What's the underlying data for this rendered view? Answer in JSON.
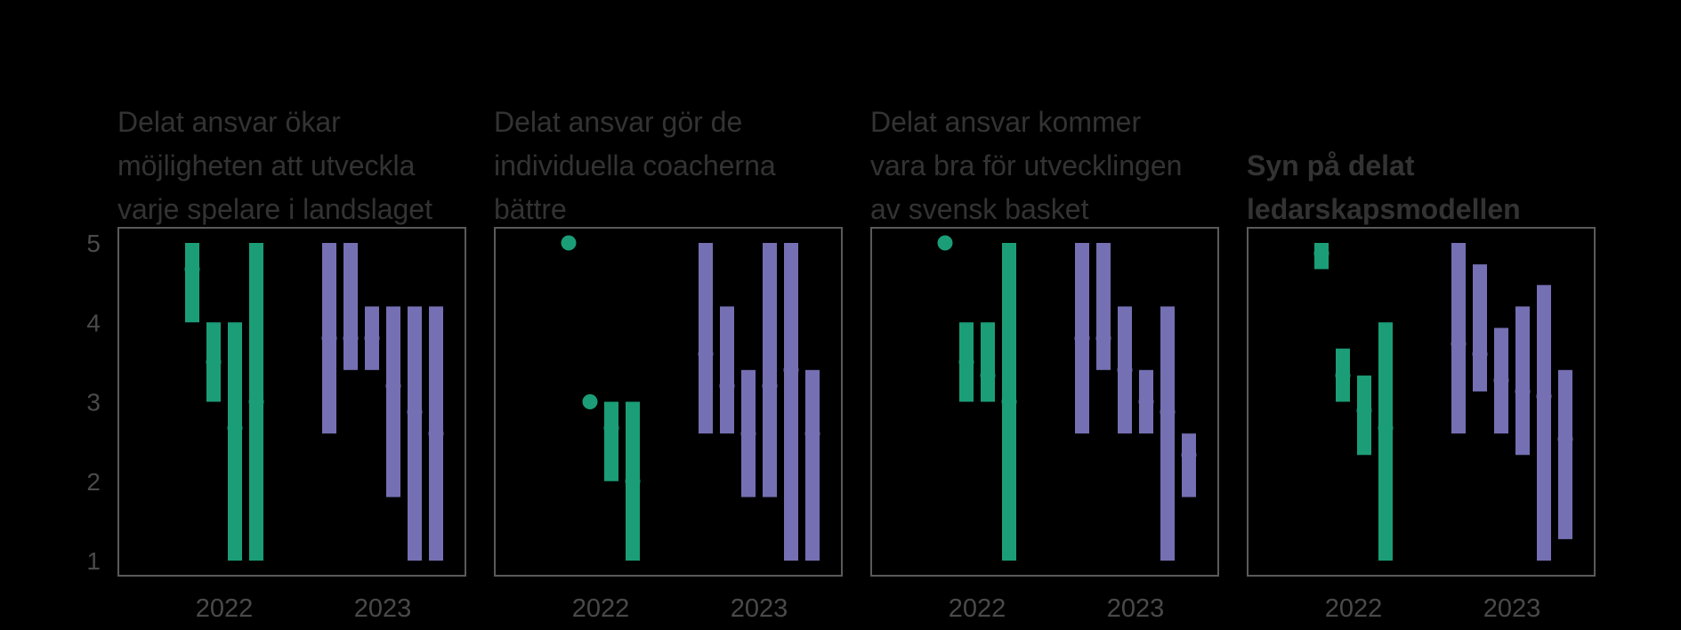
{
  "chart_data": {
    "type": "interval",
    "ylim": [
      1,
      5
    ],
    "yticks": [
      1,
      2,
      3,
      4,
      5
    ],
    "colors": {
      "2022": "#1b9e77",
      "2023": "#7570b3"
    },
    "panels": [
      {
        "title_lines": [
          "Delat ansvar ökar",
          "möjligheten att utveckla",
          "varje spelare i landslaget"
        ],
        "title_bold": false,
        "groups": [
          {
            "year": "2022",
            "items": [
              {
                "low": 4.0,
                "high": 5.0,
                "mean": 4.67
              },
              {
                "low": 3.0,
                "high": 4.0,
                "mean": 3.5
              },
              {
                "low": 1.0,
                "high": 4.0,
                "mean": 2.67
              },
              {
                "low": 1.0,
                "high": 5.0,
                "mean": 3.0
              }
            ]
          },
          {
            "year": "2023",
            "items": [
              {
                "low": 2.6,
                "high": 5.0,
                "mean": 3.8
              },
              {
                "low": 3.4,
                "high": 5.0,
                "mean": 3.8
              },
              {
                "low": 3.4,
                "high": 4.2,
                "mean": 3.8
              },
              {
                "low": 1.8,
                "high": 4.2,
                "mean": 3.2
              },
              {
                "low": 1.0,
                "high": 4.2,
                "mean": 2.87
              },
              {
                "low": 1.0,
                "high": 4.2,
                "mean": 2.6
              }
            ]
          }
        ]
      },
      {
        "title_lines": [
          "Delat ansvar gör de",
          "individuella coacherna",
          "bättre"
        ],
        "title_bold": false,
        "groups": [
          {
            "year": "2022",
            "items": [
              {
                "low": 5.0,
                "high": 5.0,
                "mean": 5.0
              },
              {
                "low": 3.0,
                "high": 3.0,
                "mean": 3.0
              },
              {
                "low": 2.0,
                "high": 3.0,
                "mean": 2.67
              },
              {
                "low": 1.0,
                "high": 3.0,
                "mean": 2.0
              }
            ]
          },
          {
            "year": "2023",
            "items": [
              {
                "low": 2.6,
                "high": 5.0,
                "mean": 3.6
              },
              {
                "low": 2.6,
                "high": 4.2,
                "mean": 3.2
              },
              {
                "low": 1.8,
                "high": 3.4,
                "mean": 2.6
              },
              {
                "low": 1.8,
                "high": 5.0,
                "mean": 3.2
              },
              {
                "low": 1.0,
                "high": 5.0,
                "mean": 3.4
              },
              {
                "low": 1.0,
                "high": 3.4,
                "mean": 2.6
              }
            ]
          }
        ]
      },
      {
        "title_lines": [
          "Delat ansvar kommer",
          "vara bra för utvecklingen",
          "av svensk basket"
        ],
        "title_bold": false,
        "groups": [
          {
            "year": "2022",
            "items": [
              {
                "low": 5.0,
                "high": 5.0,
                "mean": 5.0
              },
              {
                "low": 3.0,
                "high": 4.0,
                "mean": 3.5
              },
              {
                "low": 3.0,
                "high": 4.0,
                "mean": 3.33
              },
              {
                "low": 1.0,
                "high": 5.0,
                "mean": 3.0
              }
            ]
          },
          {
            "year": "2023",
            "items": [
              {
                "low": 2.6,
                "high": 5.0,
                "mean": 3.8
              },
              {
                "low": 3.4,
                "high": 5.0,
                "mean": 3.8
              },
              {
                "low": 2.6,
                "high": 4.2,
                "mean": 3.4
              },
              {
                "low": 2.6,
                "high": 3.4,
                "mean": 3.0
              },
              {
                "low": 1.0,
                "high": 4.2,
                "mean": 2.87
              },
              {
                "low": 1.8,
                "high": 2.6,
                "mean": 2.33
              }
            ]
          }
        ]
      },
      {
        "title_lines": [
          "Syn på delat",
          "ledarskapsmodellen"
        ],
        "title_bold": true,
        "groups": [
          {
            "year": "2022",
            "items": [
              {
                "low": 4.67,
                "high": 5.0,
                "mean": 4.87
              },
              {
                "low": 3.0,
                "high": 3.67,
                "mean": 3.33
              },
              {
                "low": 2.33,
                "high": 3.33,
                "mean": 2.89
              },
              {
                "low": 1.0,
                "high": 4.0,
                "mean": 2.67
              }
            ]
          },
          {
            "year": "2023",
            "items": [
              {
                "low": 2.6,
                "high": 5.0,
                "mean": 3.73
              },
              {
                "low": 3.13,
                "high": 4.73,
                "mean": 3.6
              },
              {
                "low": 2.6,
                "high": 3.93,
                "mean": 3.27
              },
              {
                "low": 2.33,
                "high": 4.2,
                "mean": 3.13
              },
              {
                "low": 1.0,
                "high": 4.47,
                "mean": 3.07
              },
              {
                "low": 1.27,
                "high": 3.4,
                "mean": 2.53
              }
            ]
          }
        ]
      }
    ]
  }
}
